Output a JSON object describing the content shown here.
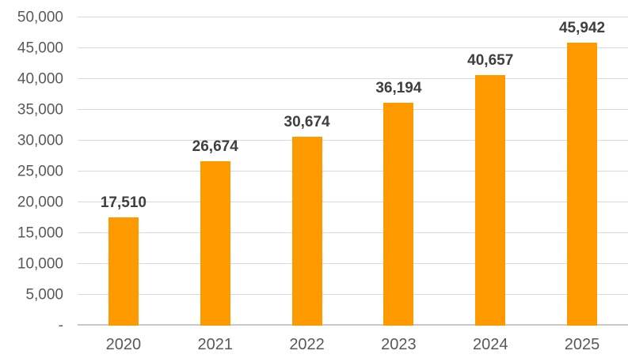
{
  "chart_data": {
    "type": "bar",
    "title": "",
    "xlabel": "",
    "ylabel": "",
    "categories": [
      "2020",
      "2021",
      "2022",
      "2023",
      "2024",
      "2025"
    ],
    "values": [
      17510,
      26674,
      30674,
      36194,
      40657,
      45942
    ],
    "value_labels": [
      "17,510",
      "26,674",
      "30,674",
      "36,194",
      "40,657",
      "45,942"
    ],
    "ylim": [
      0,
      50000
    ],
    "y_tick_step": 5000,
    "y_tick_labels_bottom_to_top": [
      "-",
      "5,000",
      "10,000",
      "15,000",
      "20,000",
      "25,000",
      "30,000",
      "35,000",
      "40,000",
      "45,000",
      "50,000"
    ],
    "grid": true,
    "legend": false,
    "colors": {
      "bar": "#FF9900",
      "gridline": "#D9D9D9",
      "axis_line": "#C9C7C7",
      "tick_label": "#595959",
      "data_label": "#3F3F3F",
      "background": "#FFFFFF"
    }
  }
}
